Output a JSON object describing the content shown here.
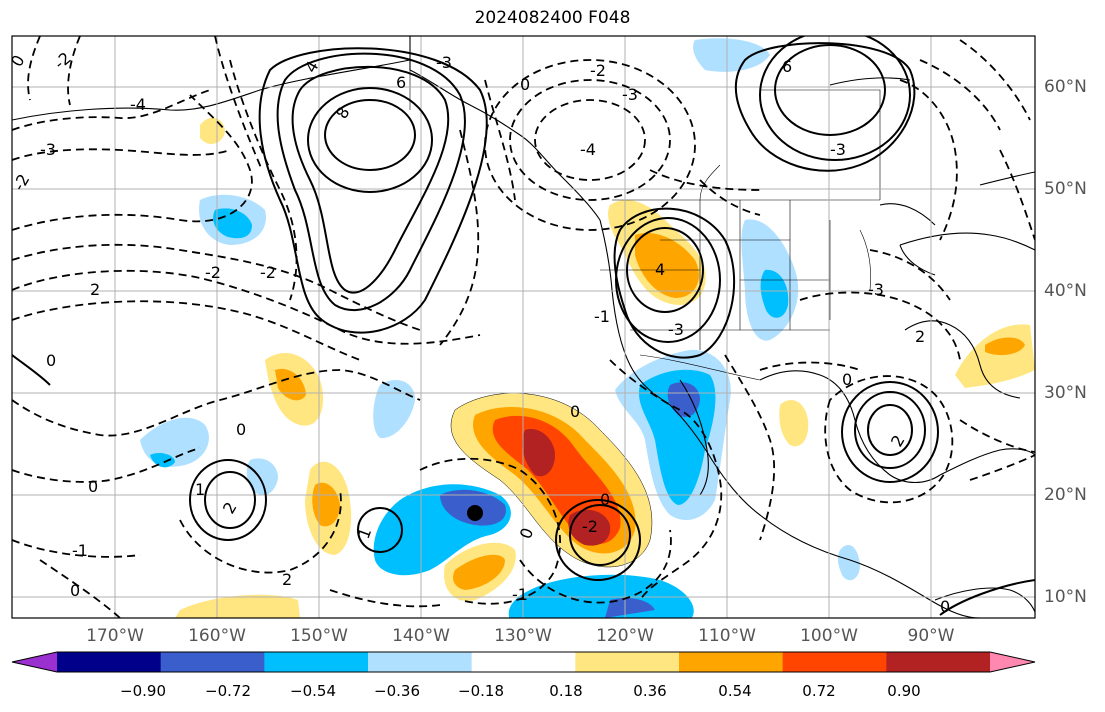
{
  "title": "2024082400 F048",
  "map": {
    "longitude_labels": [
      "170°W",
      "160°W",
      "150°W",
      "140°W",
      "130°W",
      "120°W",
      "110°W",
      "100°W",
      "90°W"
    ],
    "latitude_labels": [
      "60°N",
      "50°N",
      "40°N",
      "30°N",
      "20°N",
      "10°N"
    ],
    "contour_labels": [
      "-2",
      "0",
      "-4",
      "-3",
      "4",
      "-2",
      "-3",
      "6",
      "8",
      "-2",
      "0",
      "-3",
      "-4",
      "6",
      "-2",
      "2",
      "-3",
      "4",
      "-3",
      "-1",
      "2",
      "-3",
      "0",
      "0",
      "0",
      "-1",
      "2",
      "1",
      "0",
      "2",
      "-1",
      "-2",
      "0",
      "0",
      "2",
      "0",
      "0",
      "1",
      "-2",
      "0"
    ],
    "grid": true,
    "projection": "cylindrical"
  },
  "colorbar": {
    "tick_labels": [
      "−0.90",
      "−0.72",
      "−0.54",
      "−0.36",
      "−0.18",
      "0.18",
      "0.36",
      "0.54",
      "0.72",
      "0.90"
    ],
    "colors": [
      "#9b30d0",
      "#00008b",
      "#3a5fcd",
      "#00bfff",
      "#b0e0ff",
      "#ffffff",
      "#ffe680",
      "#ffa500",
      "#ff4500",
      "#b22222",
      "#ff88b0"
    ],
    "extend": "both"
  }
}
